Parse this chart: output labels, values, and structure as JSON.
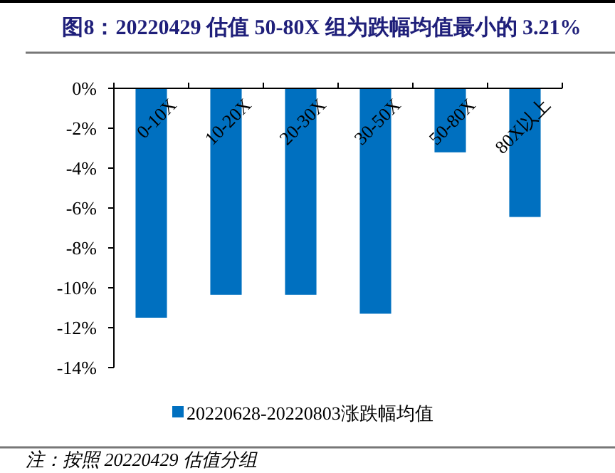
{
  "chart_data": {
    "type": "bar",
    "title": "图8：20220429 估值 50-80X 组为跌幅均值最小的 3.21%",
    "categories": [
      "0-10X",
      "10-20X",
      "20-30X",
      "30-50X",
      "50-80X",
      "80X以上"
    ],
    "series": [
      {
        "name": "20220628-20220803涨跌幅均值",
        "color": "#0070c0",
        "values": [
          -11.5,
          -10.35,
          -10.35,
          -11.3,
          -3.21,
          -6.45
        ]
      }
    ],
    "ylim": [
      -14,
      0
    ],
    "yticks": [
      {
        "value": 0,
        "label": "0%"
      },
      {
        "value": -2,
        "label": "-2%"
      },
      {
        "value": -4,
        "label": "-4%"
      },
      {
        "value": -6,
        "label": "-6%"
      },
      {
        "value": -8,
        "label": "-8%"
      },
      {
        "value": -10,
        "label": "-10%"
      },
      {
        "value": -12,
        "label": "-12%"
      },
      {
        "value": -14,
        "label": "-14%"
      }
    ],
    "legend": "bottom",
    "annotations": [
      "注：按照 20220429 估值分组"
    ]
  }
}
